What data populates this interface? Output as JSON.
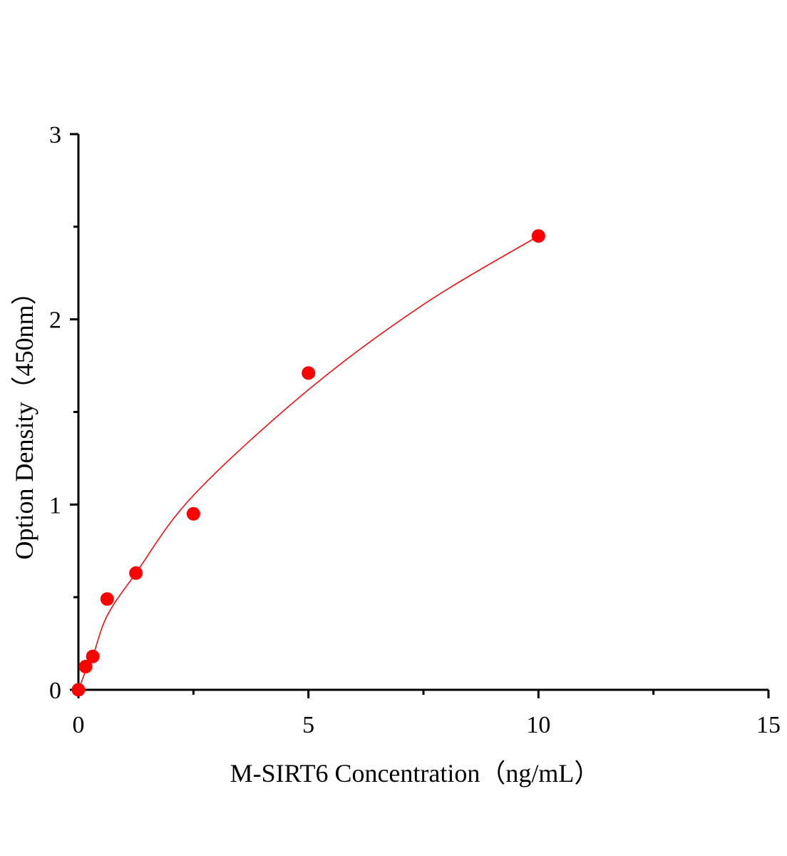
{
  "chart_data": {
    "type": "scatter",
    "title": "",
    "xlabel": "M-SIRT6 Concentration（ng/mL）",
    "ylabel": "Option Density（450nm）",
    "xlim": [
      0,
      15
    ],
    "ylim": [
      0,
      3
    ],
    "xticks": [
      "0",
      "5",
      "10",
      "15"
    ],
    "yticks": [
      "0",
      "1",
      "2",
      "3"
    ],
    "grid": false,
    "legend": "none",
    "point_color": "#ff0000",
    "curve_color": "#ff0000",
    "points": {
      "x": [
        0,
        0.156,
        0.3125,
        0.625,
        1.25,
        2.5,
        5,
        10
      ],
      "y": [
        0.0,
        0.125,
        0.18,
        0.49,
        0.63,
        0.95,
        1.71,
        2.45
      ]
    },
    "fit_curve": {
      "x": [
        0,
        0.156,
        0.3125,
        0.625,
        1.25,
        2.5,
        5,
        7.5,
        10
      ],
      "y": [
        0,
        0.1,
        0.18,
        0.4,
        0.63,
        1.05,
        1.62,
        2.08,
        2.45
      ]
    }
  }
}
